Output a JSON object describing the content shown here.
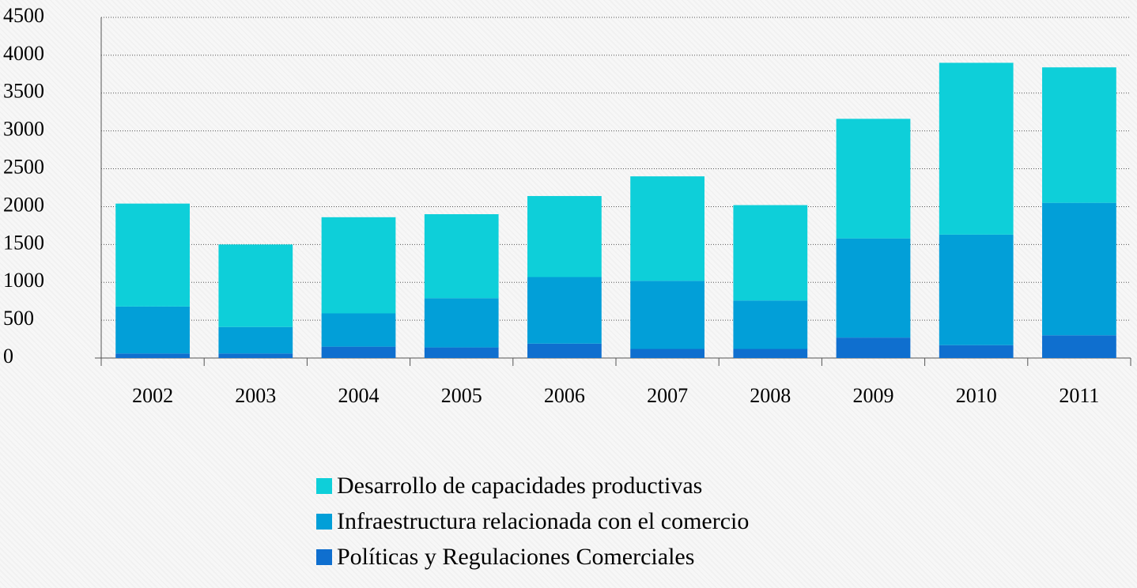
{
  "chart_data": {
    "type": "stacked_bar",
    "categories": [
      "2002",
      "2003",
      "2004",
      "2005",
      "2006",
      "2007",
      "2008",
      "2009",
      "2010",
      "2011"
    ],
    "series": [
      {
        "name": "Desarrollo de capacidades productivas",
        "color": "#0ecfd9",
        "values": [
          1360,
          1090,
          1270,
          1110,
          1070,
          1380,
          1260,
          1580,
          2270,
          1790
        ]
      },
      {
        "name": "Infraestructura relacionada con el comercio",
        "color": "#029fd8",
        "values": [
          620,
          350,
          440,
          650,
          880,
          900,
          640,
          1310,
          1460,
          1750
        ]
      },
      {
        "name": "Políticas y Regulaciones Comerciales",
        "color": "#0f6fcf",
        "values": [
          60,
          60,
          150,
          140,
          190,
          120,
          120,
          270,
          170,
          300
        ]
      }
    ],
    "ylim": [
      0,
      4500
    ],
    "yticks": [
      0,
      500,
      1000,
      1500,
      2000,
      2500,
      3000,
      3500,
      4000,
      4500
    ],
    "grid": true,
    "legend": "bottom"
  }
}
